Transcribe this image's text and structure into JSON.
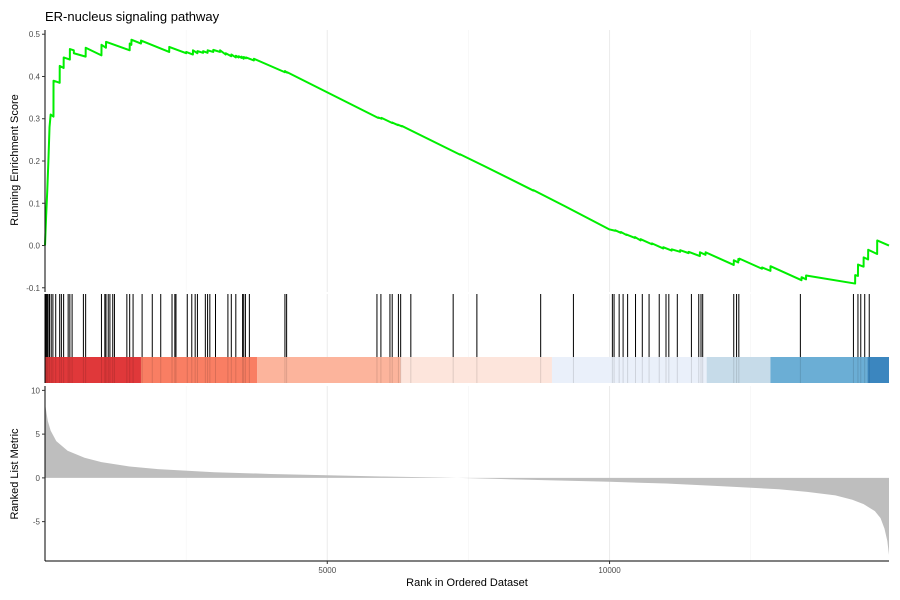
{
  "chart_data": {
    "type": "line",
    "title": "ER-nucleus signaling pathway",
    "xlabel": "Rank in Ordered Dataset",
    "x_ticks": [
      5000,
      10000
    ],
    "xlim": [
      0,
      14950
    ],
    "panels": {
      "enrichment": {
        "ylabel": "Running Enrichment Score",
        "ylim": [
          -0.11,
          0.51
        ],
        "y_ticks": [
          -0.1,
          0.0,
          0.1,
          0.2,
          0.3,
          0.4,
          0.5
        ],
        "y_tick_labels": [
          "-0.1",
          "0.0",
          "0.1",
          "0.2",
          "0.3",
          "0.4",
          "0.5"
        ],
        "line_color": "#00ee00",
        "series": [
          {
            "x": [
              0,
              20,
              40,
              60,
              80,
              100,
              150,
              151,
              260,
              261,
              330,
              331,
              440,
              441,
              510,
              511,
              720,
              721,
              1000,
              1001,
              1080,
              1081,
              1500,
              1501,
              1530,
              1531,
              1700,
              1701,
              2200,
              2201,
              2500,
              2501,
              2620,
              2621,
              2700,
              2701,
              2800,
              2801,
              2880,
              2881,
              2980,
              2981,
              3100,
              3101,
              3200,
              3201,
              3300,
              3301,
              3380,
              3381,
              3430,
              3431,
              3480,
              3481,
              3520,
              3521,
              3560,
              3561,
              3700,
              3701,
              4250,
              4251,
              4290,
              4291,
              5900,
              5901,
              5960,
              5961,
              6150,
              6151,
              6250,
              6251,
              6320,
              6321,
              7350,
              7351,
              7750,
              7751,
              8650,
              8651,
              9180,
              9181,
              10000,
              10001,
              10100,
              10101,
              10200,
              10201,
              10300,
              10301,
              10450,
              10451,
              10550,
              10551,
              10750,
              10751,
              10950,
              10951,
              11100,
              11101,
              11250,
              11251,
              11400,
              11401,
              11600,
              11601,
              11700,
              11701,
              12200,
              12201,
              12280,
              12281,
              12300,
              12301,
              12700,
              12701,
              12850,
              12851,
              13400,
              13401,
              13480,
              13481,
              14350,
              14351,
              14400,
              14401,
              14500,
              14501,
              14580,
              14581,
              14740,
              14741,
              14950
            ],
            "y": [
              0.0,
              0.07,
              0.13,
              0.2,
              0.28,
              0.31,
              0.305,
              0.39,
              0.385,
              0.425,
              0.42,
              0.445,
              0.44,
              0.465,
              0.462,
              0.455,
              0.447,
              0.468,
              0.45,
              0.475,
              0.468,
              0.482,
              0.462,
              0.478,
              0.475,
              0.487,
              0.478,
              0.485,
              0.458,
              0.47,
              0.455,
              0.458,
              0.452,
              0.462,
              0.455,
              0.46,
              0.456,
              0.46,
              0.456,
              0.462,
              0.458,
              0.463,
              0.458,
              0.462,
              0.452,
              0.455,
              0.448,
              0.452,
              0.445,
              0.449,
              0.445,
              0.448,
              0.444,
              0.447,
              0.442,
              0.446,
              0.443,
              0.445,
              0.438,
              0.442,
              0.41,
              0.413,
              0.409,
              0.41,
              0.302,
              0.303,
              0.3,
              0.302,
              0.29,
              0.291,
              0.285,
              0.286,
              0.282,
              0.283,
              0.215,
              0.216,
              0.19,
              0.19,
              0.13,
              0.131,
              0.095,
              0.095,
              0.038,
              0.038,
              0.035,
              0.036,
              0.03,
              0.032,
              0.025,
              0.026,
              0.018,
              0.02,
              0.012,
              0.015,
              0.003,
              0.005,
              -0.007,
              -0.004,
              -0.012,
              -0.009,
              -0.015,
              -0.011,
              -0.018,
              -0.015,
              -0.025,
              -0.016,
              -0.022,
              -0.016,
              -0.046,
              -0.035,
              -0.04,
              -0.032,
              -0.034,
              -0.031,
              -0.055,
              -0.052,
              -0.06,
              -0.049,
              -0.082,
              -0.075,
              -0.08,
              -0.071,
              -0.09,
              -0.07,
              -0.072,
              -0.045,
              -0.05,
              -0.028,
              -0.033,
              -0.01,
              -0.02,
              0.012,
              0.0
            ]
          }
        ]
      },
      "hits": {
        "gene_positions": [
          10,
          25,
          40,
          55,
          80,
          110,
          140,
          190,
          260,
          290,
          330,
          410,
          440,
          480,
          680,
          720,
          1000,
          1060,
          1080,
          1120,
          1150,
          1200,
          1230,
          1450,
          1500,
          1560,
          1720,
          1900,
          2050,
          2250,
          2300,
          2320,
          2520,
          2600,
          2660,
          2700,
          2840,
          2880,
          2920,
          3020,
          3240,
          3300,
          3380,
          3500,
          3520,
          3550,
          3620,
          4250,
          4280,
          5880,
          5950,
          6110,
          6150,
          6260,
          6300,
          6480,
          7230,
          7650,
          8780,
          9360,
          10050,
          10080,
          10170,
          10240,
          10320,
          10460,
          10580,
          10700,
          10880,
          11000,
          11050,
          11200,
          11450,
          11580,
          11620,
          11650,
          12200,
          12250,
          12290,
          13380,
          14320,
          14400,
          14450,
          14520,
          14600
        ]
      },
      "color_band": {
        "segments": [
          {
            "from": 0,
            "to": 1700,
            "color": "#e0383a"
          },
          {
            "from": 1700,
            "to": 3760,
            "color": "#f97e63"
          },
          {
            "from": 3760,
            "to": 6300,
            "color": "#fcb49c"
          },
          {
            "from": 6300,
            "to": 8980,
            "color": "#fde5dc"
          },
          {
            "from": 8980,
            "to": 11720,
            "color": "#eaf0fa"
          },
          {
            "from": 11720,
            "to": 12850,
            "color": "#c6dbe9"
          },
          {
            "from": 12850,
            "to": 14570,
            "color": "#6baed5"
          },
          {
            "from": 14570,
            "to": 14950,
            "color": "#3b86bf"
          }
        ]
      },
      "ranked": {
        "ylabel": "Ranked List Metric",
        "ylim": [
          -9.5,
          10.5
        ],
        "y_ticks": [
          -5,
          0,
          5,
          10
        ],
        "y_tick_labels": [
          "-5",
          "0",
          "5",
          "10"
        ],
        "fill_color": "#bebebe",
        "x": [
          0,
          50,
          100,
          200,
          400,
          700,
          1000,
          1500,
          2000,
          3000,
          4000,
          5000,
          6000,
          7000,
          7300,
          7400,
          8000,
          9000,
          10000,
          11000,
          12000,
          13000,
          13500,
          14000,
          14300,
          14500,
          14700,
          14800,
          14870,
          14920,
          14950
        ],
        "values": [
          8.5,
          6.5,
          5.4,
          4.2,
          3.1,
          2.3,
          1.8,
          1.3,
          1.0,
          0.65,
          0.45,
          0.3,
          0.15,
          0.05,
          0.0,
          -0.02,
          -0.12,
          -0.28,
          -0.45,
          -0.65,
          -0.95,
          -1.3,
          -1.6,
          -2.0,
          -2.5,
          -3.0,
          -3.8,
          -4.6,
          -5.8,
          -7.2,
          -8.8
        ]
      }
    }
  }
}
